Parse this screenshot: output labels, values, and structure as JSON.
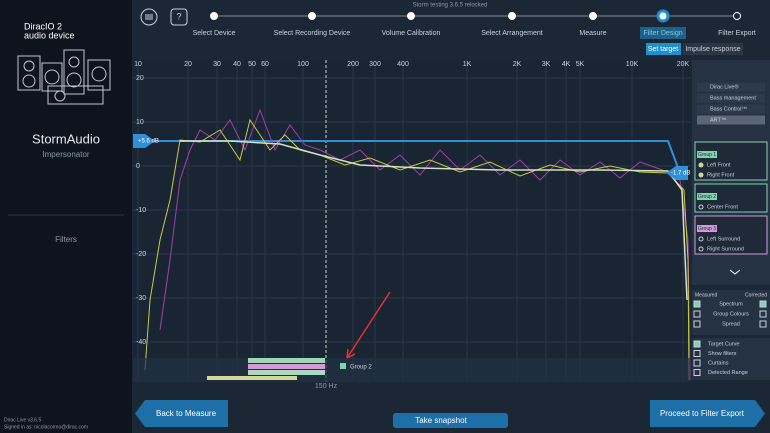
{
  "header": {
    "title": "Storm testing 3.6.5 relocked",
    "steps": [
      "Select Device",
      "Select Recording Device",
      "Volume Calibration",
      "Select Arrangement",
      "Measure",
      "Filter Design",
      "Filter Export"
    ],
    "tabs": [
      "Set target",
      "Impulse response"
    ]
  },
  "sidebar": {
    "device": [
      "DiracIO 2",
      "audio device"
    ],
    "processor": "StormAudio",
    "processor_sub": "Impersonator",
    "section": "Filters",
    "version": "Dirac Live v3.6.5",
    "signed_in": "Signed in as: nicolacormo@dirac.com"
  },
  "graph": {
    "x_labels": [
      "10",
      "20",
      "30",
      "40",
      "50",
      "60",
      "100",
      "200",
      "300",
      "400",
      "1K",
      "2K",
      "3K",
      "4K",
      "5K",
      "10K",
      "20K"
    ],
    "y_labels": [
      "20",
      "10",
      "0",
      "-10",
      "-20",
      "-30",
      "-40"
    ],
    "left_handle": "+5.6 dB",
    "right_handle": "-1.7 dB",
    "marker": "150 Hz",
    "group_label": "Group 2"
  },
  "panel": {
    "options": [
      "Dirac Live®",
      "Bass management",
      "Bass Control™",
      "ART™"
    ],
    "groups": [
      {
        "name": "Group 1",
        "channels": [
          "Left Front",
          "Right Front"
        ]
      },
      {
        "name": "Group 2",
        "channels": [
          "Center Front"
        ]
      },
      {
        "name": "Group 3",
        "channels": [
          "Left Surround",
          "Right Surround"
        ]
      }
    ],
    "view_headers": [
      "Measured",
      "Corrected"
    ],
    "view_rows": [
      "Spectrum",
      "Group Colours",
      "Spread"
    ],
    "toggles": [
      "Target Curve",
      "Show filters",
      "Curtains",
      "Detected Range"
    ]
  },
  "footer": {
    "back": "Back to Measure",
    "snapshot": "Take snapshot",
    "proceed": "Proceed to Filter Export"
  }
}
